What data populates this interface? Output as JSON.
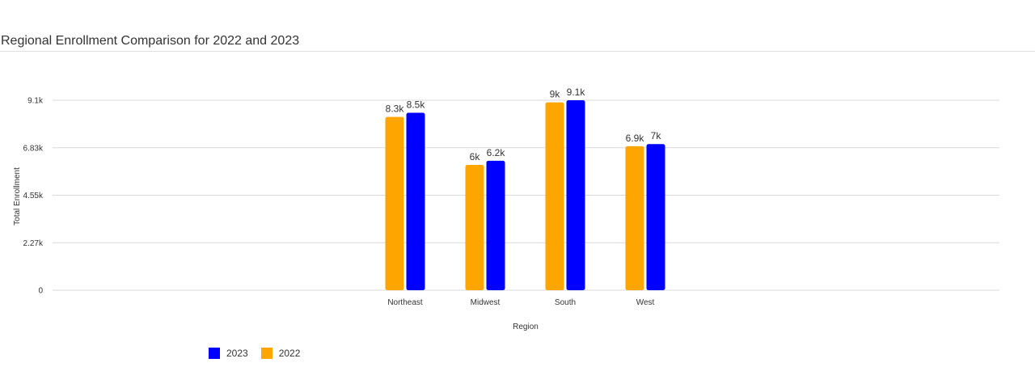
{
  "chart_data": {
    "type": "bar",
    "title": "Regional Enrollment Comparison for 2022 and 2023",
    "xlabel": "Region",
    "ylabel": "Total Enrollment",
    "categories": [
      "Northeast",
      "Midwest",
      "South",
      "West"
    ],
    "series": [
      {
        "name": "2022",
        "color": "#FFA500",
        "values": [
          8300,
          6000,
          9000,
          6900
        ],
        "labels": [
          "8.3k",
          "6k",
          "9k",
          "6.9k"
        ]
      },
      {
        "name": "2023",
        "color": "#0000FF",
        "values": [
          8500,
          6200,
          9100,
          7000
        ],
        "labels": [
          "8.5k",
          "6.2k",
          "9.1k",
          "7k"
        ]
      }
    ],
    "yticks": [
      {
        "value": 0,
        "label": "0"
      },
      {
        "value": 2275,
        "label": "2.27k"
      },
      {
        "value": 4550,
        "label": "4.55k"
      },
      {
        "value": 6825,
        "label": "6.83k"
      },
      {
        "value": 9100,
        "label": "9.1k"
      }
    ],
    "ylim": [
      0,
      9100
    ],
    "grid": true,
    "legend": {
      "position": "bottom-left",
      "entries": [
        {
          "name": "2023",
          "color": "#0000FF"
        },
        {
          "name": "2022",
          "color": "#FFA500"
        }
      ]
    }
  }
}
